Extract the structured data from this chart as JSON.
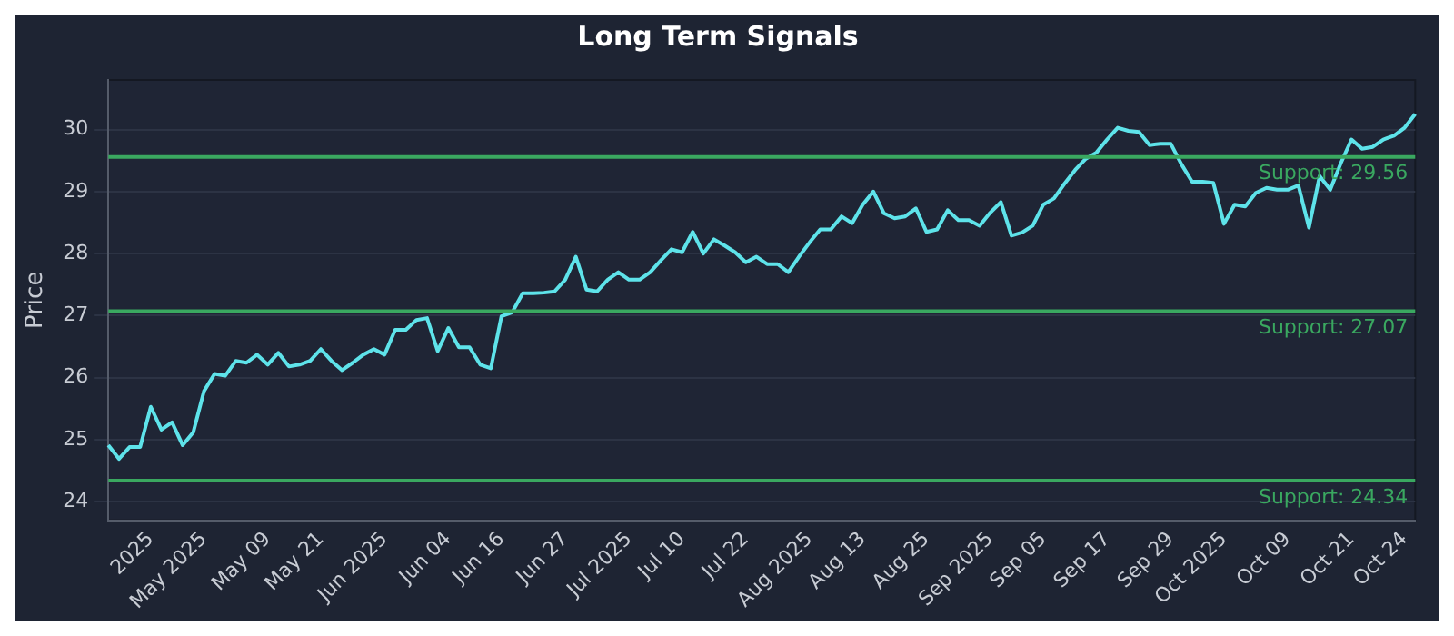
{
  "chart_data": {
    "type": "line",
    "title": "Long Term Signals",
    "ylabel": "Price",
    "categories": [
      null,
      null,
      null,
      null,
      "2025",
      null,
      null,
      null,
      null,
      "May 2025",
      null,
      null,
      null,
      null,
      null,
      "May 09",
      null,
      null,
      null,
      null,
      "May 21",
      null,
      null,
      null,
      null,
      null,
      "Jun 2025",
      null,
      null,
      null,
      null,
      null,
      "Jun 04",
      null,
      null,
      null,
      null,
      "Jun 16",
      null,
      null,
      null,
      null,
      null,
      "Jun 27",
      null,
      null,
      null,
      null,
      null,
      "Jul 2025",
      null,
      null,
      null,
      null,
      "Jul 10",
      null,
      null,
      null,
      null,
      null,
      "Jul 22",
      null,
      null,
      null,
      null,
      null,
      "Aug 2025",
      null,
      null,
      null,
      null,
      "Aug 13",
      null,
      null,
      null,
      null,
      null,
      "Aug 25",
      null,
      null,
      null,
      null,
      null,
      "Sep 2025",
      null,
      null,
      null,
      null,
      "Sep 05",
      null,
      null,
      null,
      null,
      null,
      "Sep 17",
      null,
      null,
      null,
      null,
      null,
      "Sep 29",
      null,
      null,
      null,
      null,
      "Oct 2025",
      null,
      null,
      null,
      null,
      null,
      "Oct 09",
      null,
      null,
      null,
      null,
      null,
      "Oct 21",
      null,
      null,
      null,
      null,
      "Oct 24",
      null
    ],
    "series": [
      {
        "color": "#5ee3ea",
        "values": [
          24.91,
          24.69,
          24.88,
          24.88,
          25.53,
          25.16,
          25.28,
          24.91,
          25.12,
          25.78,
          26.06,
          26.03,
          26.27,
          26.24,
          26.37,
          26.21,
          26.4,
          26.18,
          26.21,
          26.27,
          26.46,
          26.27,
          26.12,
          26.24,
          26.37,
          26.46,
          26.37,
          26.77,
          26.77,
          26.93,
          26.96,
          26.43,
          26.8,
          26.49,
          26.49,
          26.21,
          26.15,
          26.99,
          27.05,
          27.36,
          27.36,
          27.37,
          27.39,
          27.58,
          27.95,
          27.42,
          27.39,
          27.58,
          27.7,
          27.58,
          27.58,
          27.7,
          27.89,
          28.07,
          28.02,
          28.35,
          28.0,
          28.23,
          28.13,
          28.02,
          27.86,
          27.95,
          27.83,
          27.83,
          27.7,
          27.95,
          28.18,
          28.39,
          28.39,
          28.6,
          28.49,
          28.79,
          29.0,
          28.65,
          28.57,
          28.6,
          28.73,
          28.35,
          28.39,
          28.7,
          28.54,
          28.54,
          28.45,
          28.66,
          28.83,
          28.29,
          28.34,
          28.45,
          28.79,
          28.89,
          29.13,
          29.35,
          29.53,
          29.63,
          29.84,
          30.03,
          29.98,
          29.96,
          29.75,
          29.77,
          29.77,
          29.44,
          29.16,
          29.16,
          29.14,
          28.48,
          28.79,
          28.76,
          28.98,
          29.06,
          29.03,
          29.03,
          29.1,
          28.42,
          29.25,
          29.03,
          29.46,
          29.84,
          29.69,
          29.72,
          29.84,
          29.9,
          30.03,
          30.25
        ]
      }
    ],
    "ylim": [
      23.7,
      30.8
    ],
    "yticks": [
      24,
      25,
      26,
      27,
      28,
      29,
      30
    ],
    "grid": "y",
    "legend": false,
    "marker": "none",
    "line_style": "solid",
    "ref_lines": [
      {
        "axis": "y",
        "value": 29.56,
        "label": "Support: 29.56",
        "color": "#3aa860"
      },
      {
        "axis": "y",
        "value": 27.07,
        "label": "Support: 27.07",
        "color": "#3aa860"
      },
      {
        "axis": "y",
        "value": 24.34,
        "label": "Support: 24.34",
        "color": "#3aa860"
      }
    ]
  }
}
